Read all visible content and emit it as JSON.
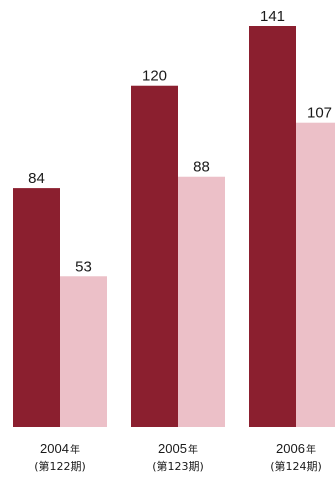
{
  "chart_data": {
    "type": "bar",
    "categories": [
      "2004",
      "2005",
      "2006"
    ],
    "category_suffix": "年",
    "sub_labels": [
      "(第122期)",
      "(第123期)",
      "(第124期)"
    ],
    "series": [
      {
        "values": [
          84,
          120,
          141
        ],
        "color": "#8b1f2f"
      },
      {
        "values": [
          53,
          88,
          107
        ],
        "color": "#ecc0c8"
      }
    ],
    "value_labels": [
      [
        "84",
        "120",
        "141"
      ],
      [
        "53",
        "88",
        "107"
      ]
    ],
    "ylim": [
      0,
      141
    ],
    "grid": false,
    "title": "",
    "xlabel": "",
    "ylabel": ""
  }
}
